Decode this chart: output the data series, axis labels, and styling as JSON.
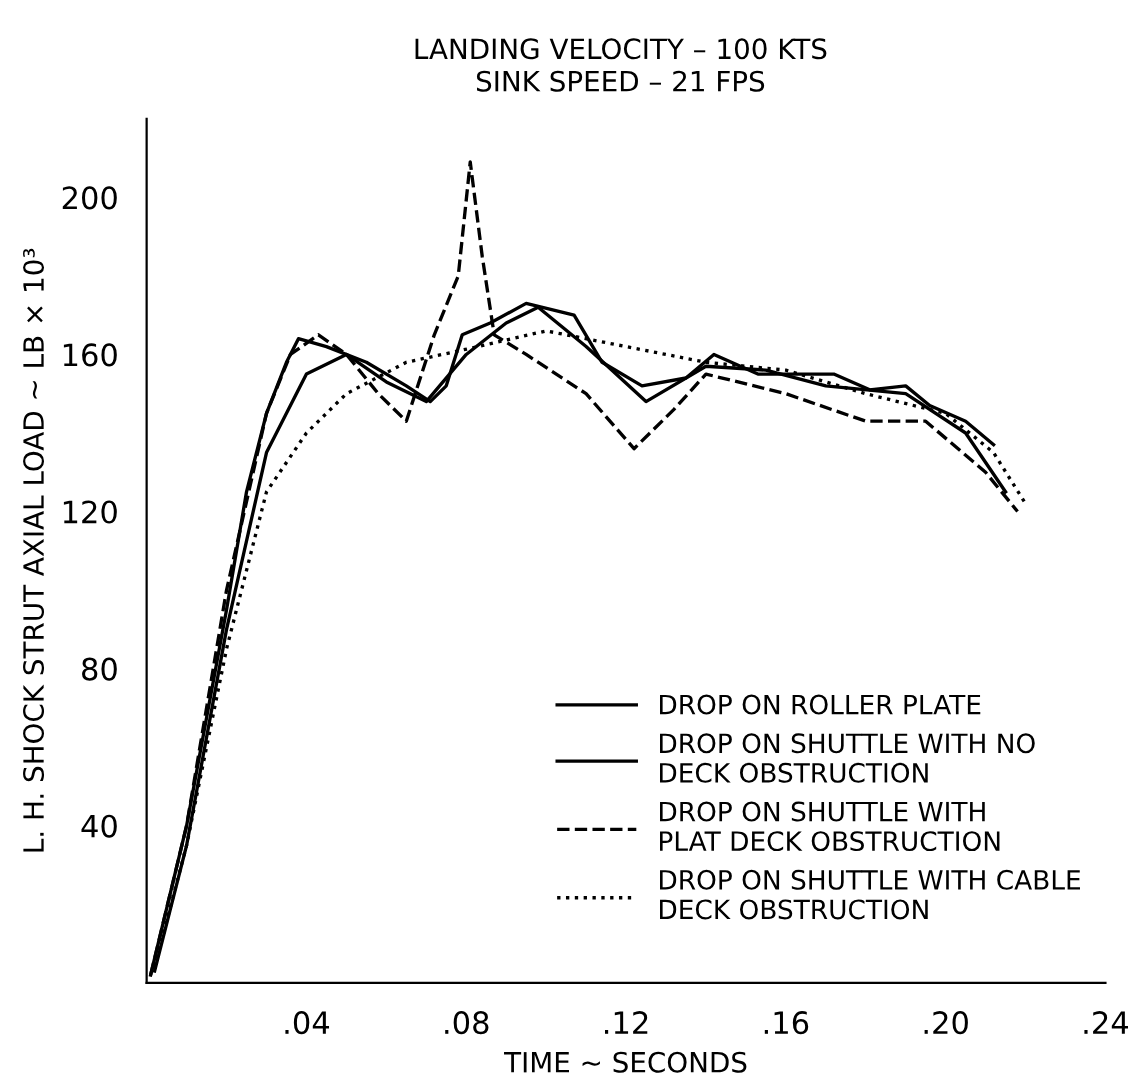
{
  "chart_data": {
    "type": "line",
    "title": "LANDING VELOCITY – 100 KTS",
    "subtitle": "SINK SPEED – 21 FPS",
    "xlabel": "TIME ~ SECONDS",
    "ylabel": "L. H. SHOCK STRUT AXIAL LOAD ~ LB × 10³",
    "xlim": [
      0,
      0.24
    ],
    "ylim": [
      0,
      220
    ],
    "xticks": [
      {
        "value": 0.04,
        "label": ".04"
      },
      {
        "value": 0.08,
        "label": ".08"
      },
      {
        "value": 0.12,
        "label": ".12"
      },
      {
        "value": 0.16,
        "label": ".16"
      },
      {
        "value": 0.2,
        "label": ".20"
      },
      {
        "value": 0.24,
        "label": ".24"
      }
    ],
    "yticks": [
      40,
      80,
      120,
      160,
      200
    ],
    "grid": false,
    "legend": "bottom right",
    "marker": "none",
    "series": [
      {
        "name": "DROP ON ROLLER PLATE",
        "color": "#000000",
        "line_style": "solid",
        "x": [
          0.001,
          0.01,
          0.02,
          0.025,
          0.03,
          0.035,
          0.038,
          0.045,
          0.055,
          0.065,
          0.071,
          0.075,
          0.079,
          0.086,
          0.095,
          0.107,
          0.114,
          0.124,
          0.135,
          0.142,
          0.153,
          0.172,
          0.181,
          0.19,
          0.196,
          0.205,
          0.212
        ],
        "values": [
          2,
          40,
          95,
          125,
          145,
          158,
          164,
          162,
          158,
          152,
          148,
          152,
          165,
          168,
          173,
          170,
          158,
          152,
          154,
          160,
          155,
          155,
          151,
          152,
          147,
          143,
          137
        ]
      },
      {
        "name": "DROP ON SHUTTLE WITH NO\nDECK OBSTRUCTION",
        "color": "#000000",
        "line_style": "solid",
        "x": [
          0.002,
          0.01,
          0.02,
          0.03,
          0.04,
          0.05,
          0.06,
          0.07,
          0.08,
          0.09,
          0.098,
          0.11,
          0.125,
          0.14,
          0.155,
          0.17,
          0.19,
          0.205,
          0.215
        ],
        "values": [
          3,
          35,
          90,
          135,
          155,
          160,
          153,
          148,
          160,
          168,
          172,
          162,
          148,
          157,
          156,
          152,
          150,
          140,
          125
        ]
      },
      {
        "name": "DROP ON SHUTTLE WITH\nPLAT DECK OBSTRUCTION",
        "color": "#000000",
        "line_style": "dashed",
        "x": [
          0.001,
          0.01,
          0.02,
          0.03,
          0.036,
          0.043,
          0.05,
          0.058,
          0.065,
          0.072,
          0.078,
          0.081,
          0.084,
          0.087,
          0.095,
          0.11,
          0.122,
          0.132,
          0.14,
          0.16,
          0.18,
          0.195,
          0.21,
          0.218
        ],
        "values": [
          2,
          40,
          100,
          145,
          160,
          165,
          160,
          150,
          143,
          165,
          180,
          209,
          185,
          165,
          160,
          150,
          136,
          146,
          155,
          150,
          143,
          143,
          130,
          120
        ]
      },
      {
        "name": "DROP ON SHUTTLE WITH CABLE\nDECK OBSTRUCTION",
        "color": "#000000",
        "line_style": "dotted",
        "x": [
          0.002,
          0.01,
          0.02,
          0.03,
          0.04,
          0.05,
          0.065,
          0.083,
          0.1,
          0.12,
          0.14,
          0.16,
          0.18,
          0.2,
          0.212,
          0.22
        ],
        "values": [
          4,
          35,
          85,
          125,
          140,
          150,
          158,
          162,
          166,
          162,
          158,
          156,
          150,
          145,
          135,
          122
        ]
      }
    ]
  }
}
